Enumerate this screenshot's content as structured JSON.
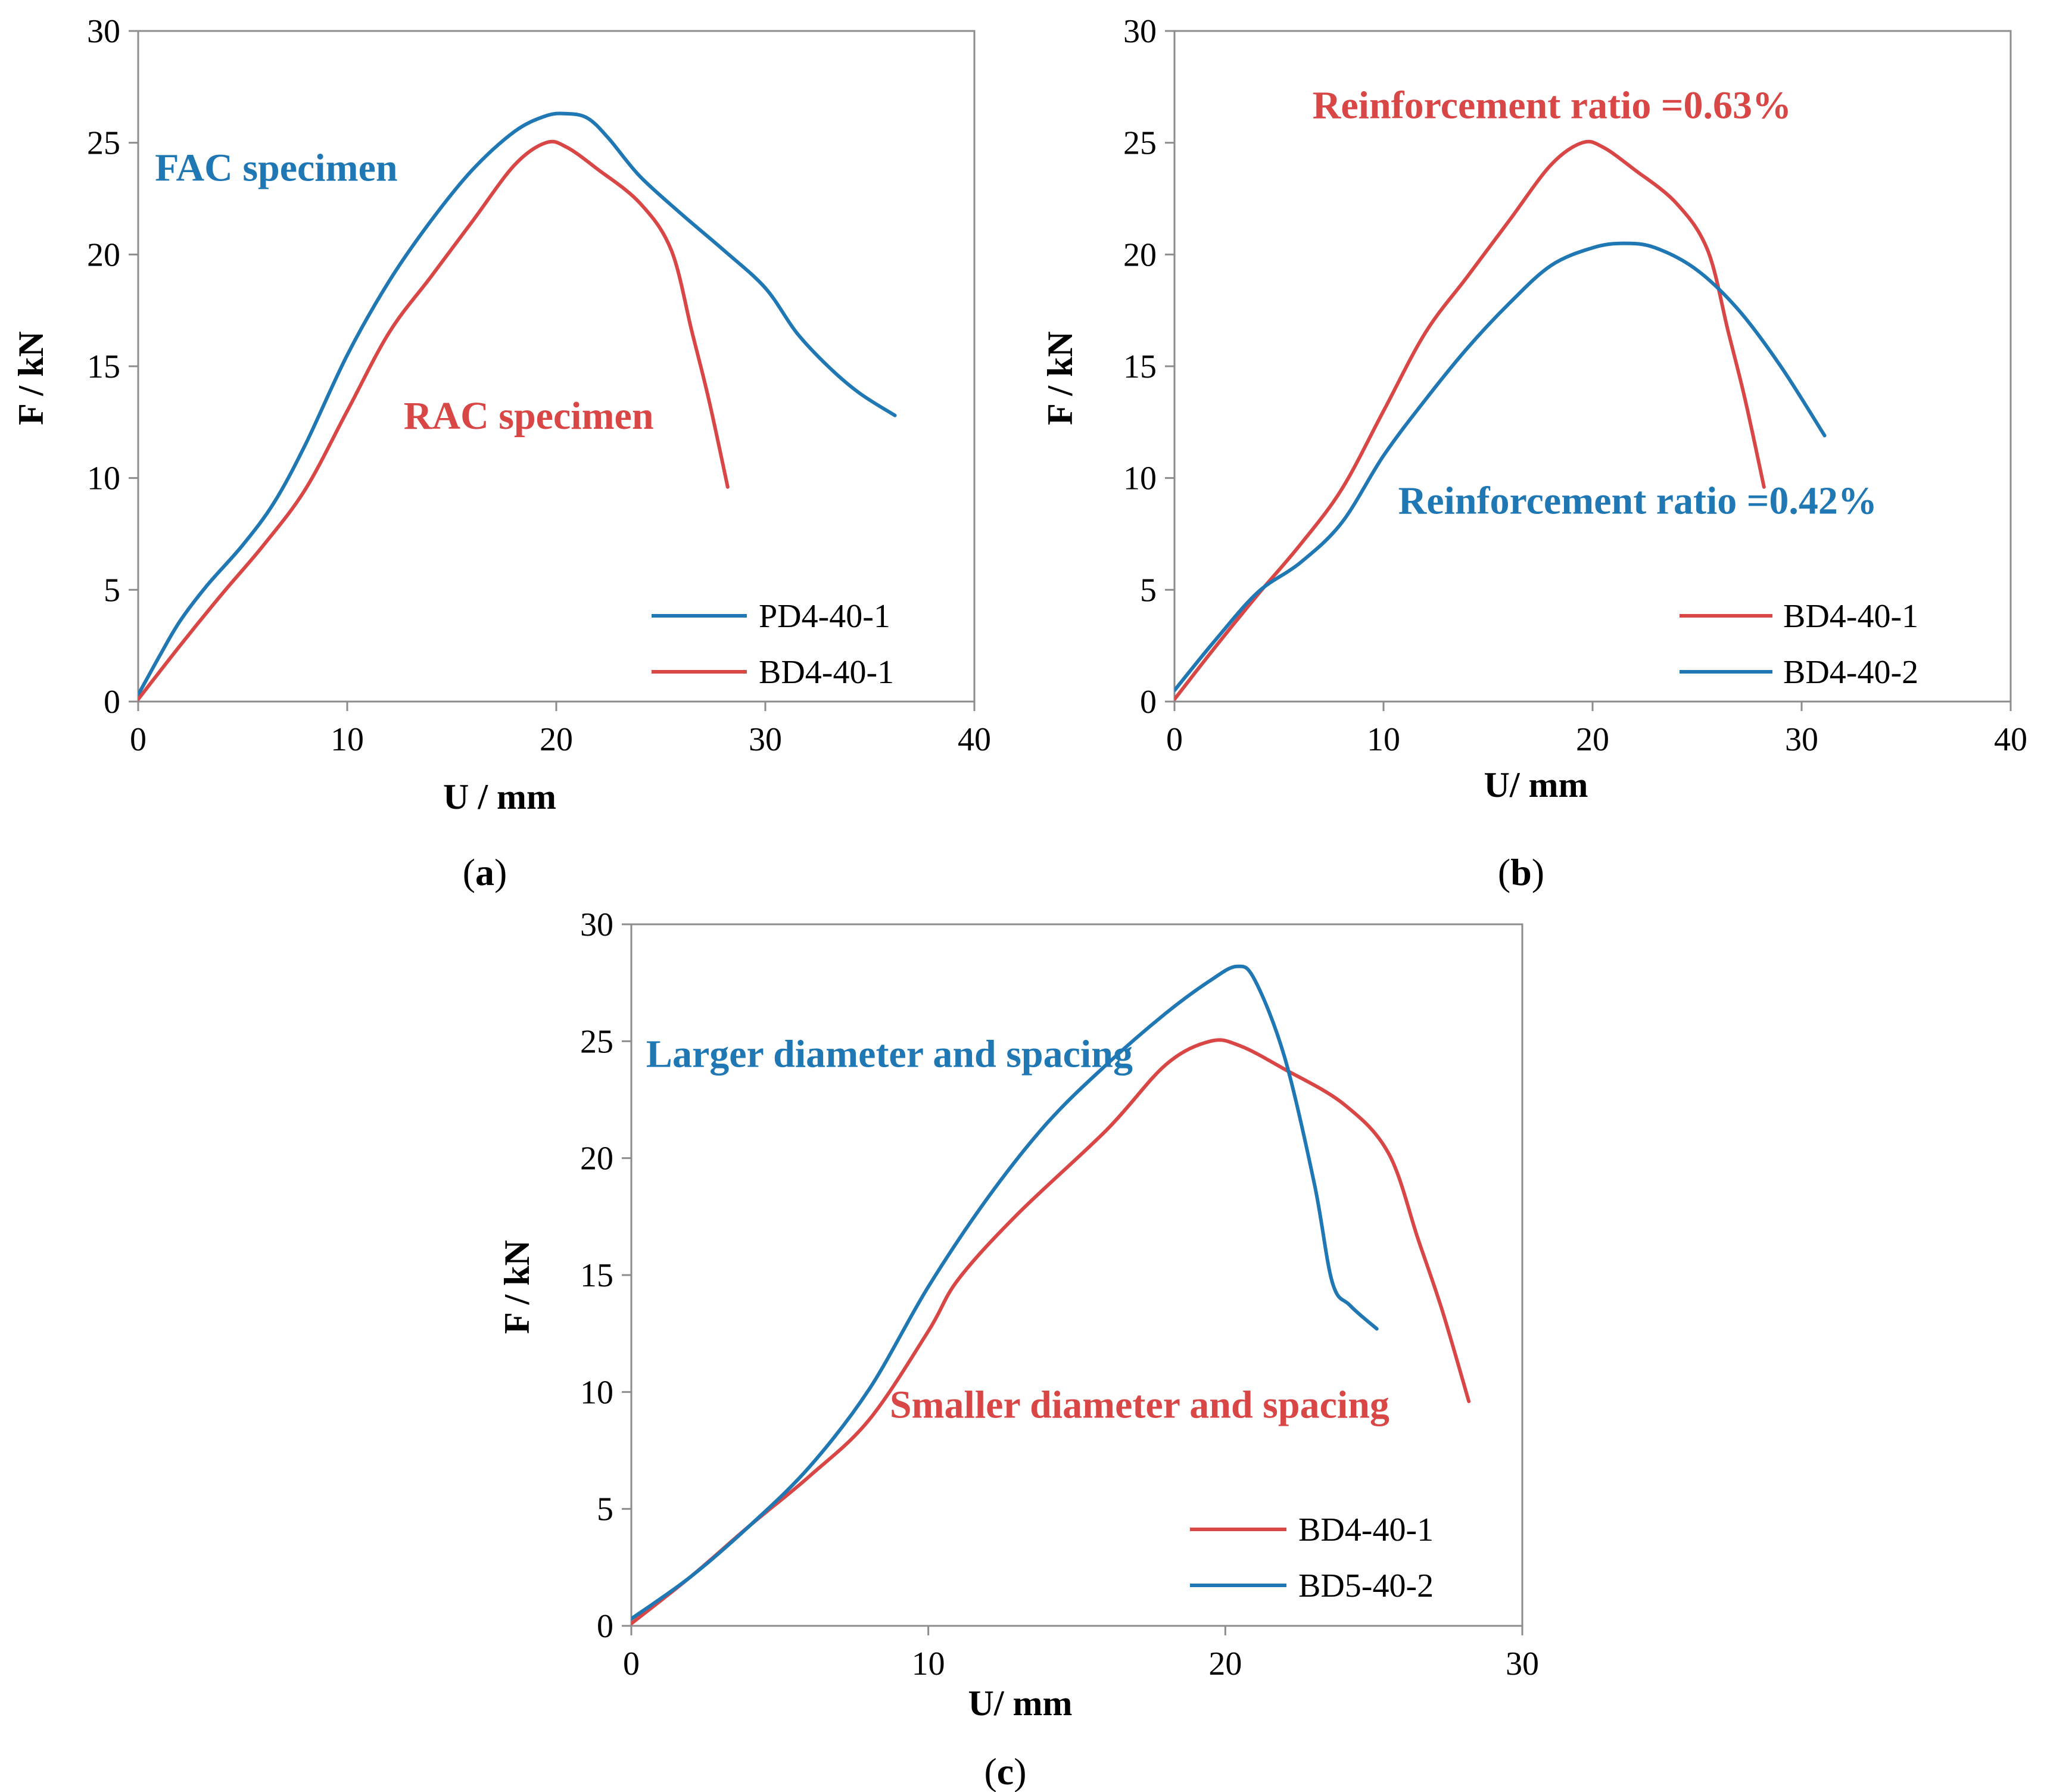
{
  "colors": {
    "blue": "#1f77b4",
    "red": "#d94646",
    "axis": "#8c8c8c"
  },
  "chart_data": [
    {
      "type": "line",
      "panel_label": "a",
      "xlabel": "U / mm",
      "ylabel": "F / kN",
      "xlim": [
        0,
        40
      ],
      "ylim": [
        0,
        30
      ],
      "xticks": [
        0,
        10,
        20,
        30,
        40
      ],
      "yticks": [
        0,
        5,
        10,
        15,
        20,
        25,
        30
      ],
      "legend_position": "bottom-right",
      "series": [
        {
          "name": "PD4-40-1",
          "color": "blue",
          "x": [
            0,
            1,
            2,
            3.3,
            5,
            6.5,
            8,
            10,
            12,
            14,
            16,
            18,
            19.5,
            20.5,
            21.5,
            22.5,
            24,
            26,
            28,
            30,
            31.5,
            33,
            34.5,
            36.2
          ],
          "y": [
            0.3,
            2,
            3.6,
            5.2,
            7,
            8.9,
            11.5,
            15.5,
            18.8,
            21.5,
            23.8,
            25.5,
            26.2,
            26.3,
            26.1,
            25.2,
            23.5,
            21.8,
            20.2,
            18.5,
            16.5,
            15,
            13.8,
            12.8
          ]
        },
        {
          "name": "BD4-40-1",
          "color": "red",
          "x": [
            0,
            2,
            4,
            6,
            8,
            10,
            12,
            14,
            16,
            18,
            19.5,
            20.5,
            22,
            24,
            25.5,
            26.5,
            27.3,
            28.2
          ],
          "y": [
            0.1,
            2.5,
            4.8,
            7,
            9.5,
            13,
            16.5,
            19,
            21.5,
            24,
            25,
            24.8,
            23.8,
            22.3,
            20.2,
            16.5,
            13.5,
            9.6
          ]
        }
      ],
      "annotations": [
        {
          "text": "FAC specimen",
          "color": "blue",
          "x": 0.8,
          "y": 23.3
        },
        {
          "text": "RAC specimen",
          "color": "red",
          "x": 12.7,
          "y": 12.2
        }
      ]
    },
    {
      "type": "line",
      "panel_label": "b",
      "xlabel": "U/ mm",
      "ylabel": "F / kN",
      "xlim": [
        0,
        40
      ],
      "ylim": [
        0,
        30
      ],
      "xticks": [
        0,
        10,
        20,
        30,
        40
      ],
      "yticks": [
        0,
        5,
        10,
        15,
        20,
        25,
        30
      ],
      "legend_position": "bottom-right",
      "series": [
        {
          "name": "BD4-40-1",
          "color": "red",
          "x": [
            0,
            2,
            4,
            6,
            8,
            10,
            12,
            14,
            16,
            18,
            19.5,
            20.5,
            22,
            24,
            25.5,
            26.5,
            27.3,
            28.2
          ],
          "y": [
            0.1,
            2.5,
            4.8,
            7,
            9.5,
            13,
            16.5,
            19,
            21.5,
            24,
            25,
            24.8,
            23.8,
            22.3,
            20.2,
            16.5,
            13.5,
            9.6
          ]
        },
        {
          "name": "BD4-40-2",
          "color": "blue",
          "x": [
            0,
            2,
            4,
            6,
            8,
            10,
            12,
            14,
            16,
            18,
            20,
            21.5,
            23,
            25,
            27,
            29,
            31.1
          ],
          "y": [
            0.5,
            2.8,
            4.9,
            6.2,
            8,
            11,
            13.5,
            15.8,
            17.8,
            19.5,
            20.3,
            20.5,
            20.3,
            19.3,
            17.5,
            15,
            11.9
          ]
        }
      ],
      "annotations": [
        {
          "text": "Reinforcement ratio =0.63%",
          "color": "red",
          "x": 6.6,
          "y": 26.1
        },
        {
          "text": "Reinforcement ratio =0.42%",
          "color": "blue",
          "x": 10.7,
          "y": 8.4
        }
      ]
    },
    {
      "type": "line",
      "panel_label": "c",
      "xlabel": "U/ mm",
      "ylabel": "F /  kN",
      "xlim": [
        0,
        30
      ],
      "ylim": [
        0,
        30
      ],
      "xticks": [
        0,
        10,
        20,
        30
      ],
      "yticks": [
        0,
        5,
        10,
        15,
        20,
        25,
        30
      ],
      "legend_position": "bottom-right",
      "series": [
        {
          "name": "BD4-40-1",
          "color": "red",
          "x": [
            0,
            2,
            4,
            6,
            8,
            10,
            11,
            13,
            16,
            18,
            19.5,
            20.5,
            22,
            24,
            25.5,
            26.5,
            27.3,
            28.2
          ],
          "y": [
            0.1,
            2.1,
            4.3,
            6.4,
            8.8,
            12.6,
            14.8,
            17.6,
            21.2,
            24,
            25,
            24.8,
            23.8,
            22.3,
            20.2,
            16.5,
            13.5,
            9.6
          ]
        },
        {
          "name": "BD5-40-2",
          "color": "blue",
          "x": [
            0,
            2,
            4,
            6,
            8,
            10,
            12,
            14,
            16,
            18,
            19.5,
            20.4,
            21,
            22,
            23,
            23.6,
            24.2,
            25.1
          ],
          "y": [
            0.3,
            2.1,
            4.3,
            6.8,
            10.1,
            14.5,
            18.3,
            21.5,
            24,
            26.2,
            27.6,
            28.2,
            27.6,
            24.3,
            18.9,
            14.7,
            13.7,
            12.7
          ]
        }
      ],
      "annotations": [
        {
          "text": "Larger diameter and spacing",
          "color": "blue",
          "x": 0.5,
          "y": 23.9
        },
        {
          "text": "Smaller diameter and spacing",
          "color": "red",
          "x": 8.7,
          "y": 8.9
        }
      ]
    }
  ]
}
